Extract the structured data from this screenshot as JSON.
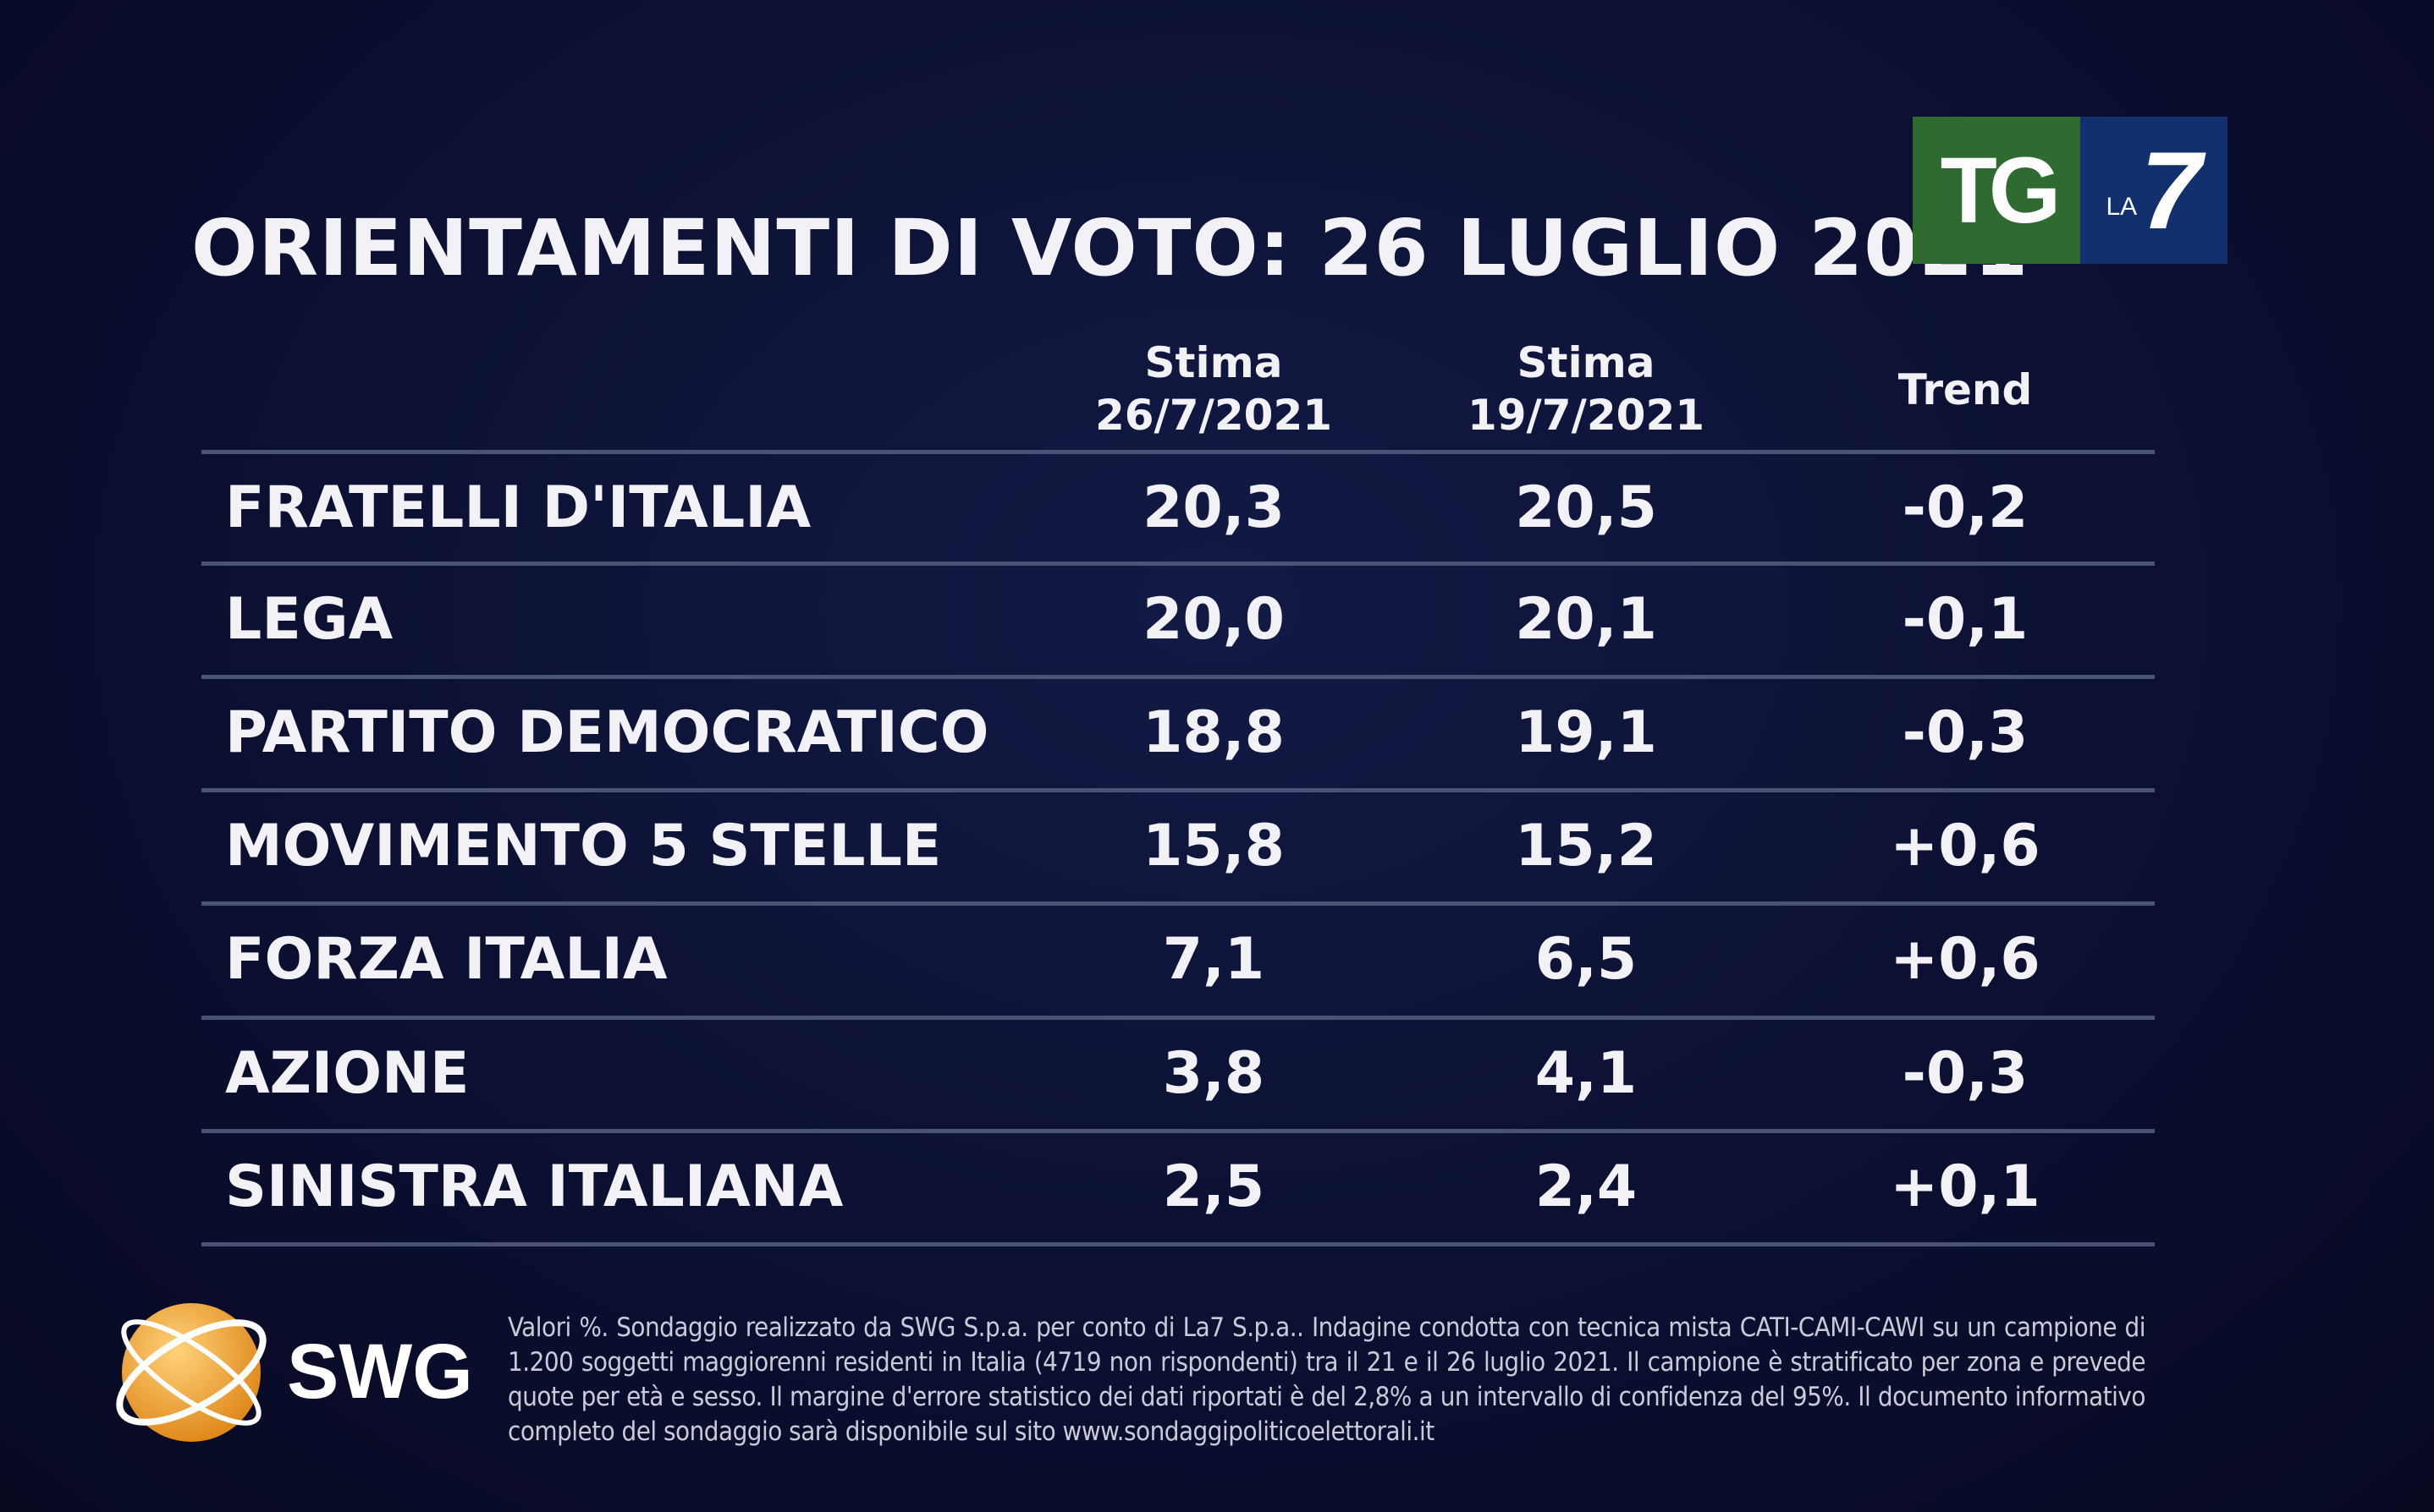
{
  "title": "ORIENTAMENTI DI VOTO: 26 LUGLIO 2021",
  "logo": {
    "tg": "TG",
    "la": "LA",
    "seven": "7",
    "green": "#2f6a30",
    "blue": "#13306e"
  },
  "columns": [
    {
      "line1": "Stima",
      "line2": "26/7/2021"
    },
    {
      "line1": "Stima",
      "line2": "19/7/2021"
    },
    {
      "line1": "Trend",
      "line2": ""
    }
  ],
  "rows": [
    {
      "party": "FRATELLI D'ITALIA",
      "current": "20,3",
      "previous": "20,5",
      "trend": "-0,2"
    },
    {
      "party": "LEGA",
      "current": "20,0",
      "previous": "20,1",
      "trend": "-0,1"
    },
    {
      "party": "PARTITO DEMOCRATICO",
      "current": "18,8",
      "previous": "19,1",
      "trend": "-0,3"
    },
    {
      "party": "MOVIMENTO 5 STELLE",
      "current": "15,8",
      "previous": "15,2",
      "trend": "+0,6"
    },
    {
      "party": "FORZA ITALIA",
      "current": "7,1",
      "previous": "6,5",
      "trend": "+0,6"
    },
    {
      "party": "AZIONE",
      "current": "3,8",
      "previous": "4,1",
      "trend": "-0,3"
    },
    {
      "party": "SINISTRA ITALIANA",
      "current": "2,5",
      "previous": "2,4",
      "trend": "+0,1"
    }
  ],
  "swg": {
    "label": "SWG",
    "globe_color": "#f0a23a"
  },
  "footnote": "Valori %. Sondaggio realizzato da SWG S.p.a. per conto di La7 S.p.a.. Indagine condotta con tecnica mista CATI-CAMI-CAWI su un campione di 1.200 soggetti maggiorenni residenti in Italia (4719 non rispondenti) tra il 21 e il 26 luglio 2021. Il campione è stratificato per zona e prevede quote per età e sesso. Il margine d'errore statistico dei dati riportati è del 2,8% a un intervallo di confidenza del 95%. Il documento informativo completo del sondaggio sarà disponibile sul sito www.sondaggipoliticoelettorali.it"
}
